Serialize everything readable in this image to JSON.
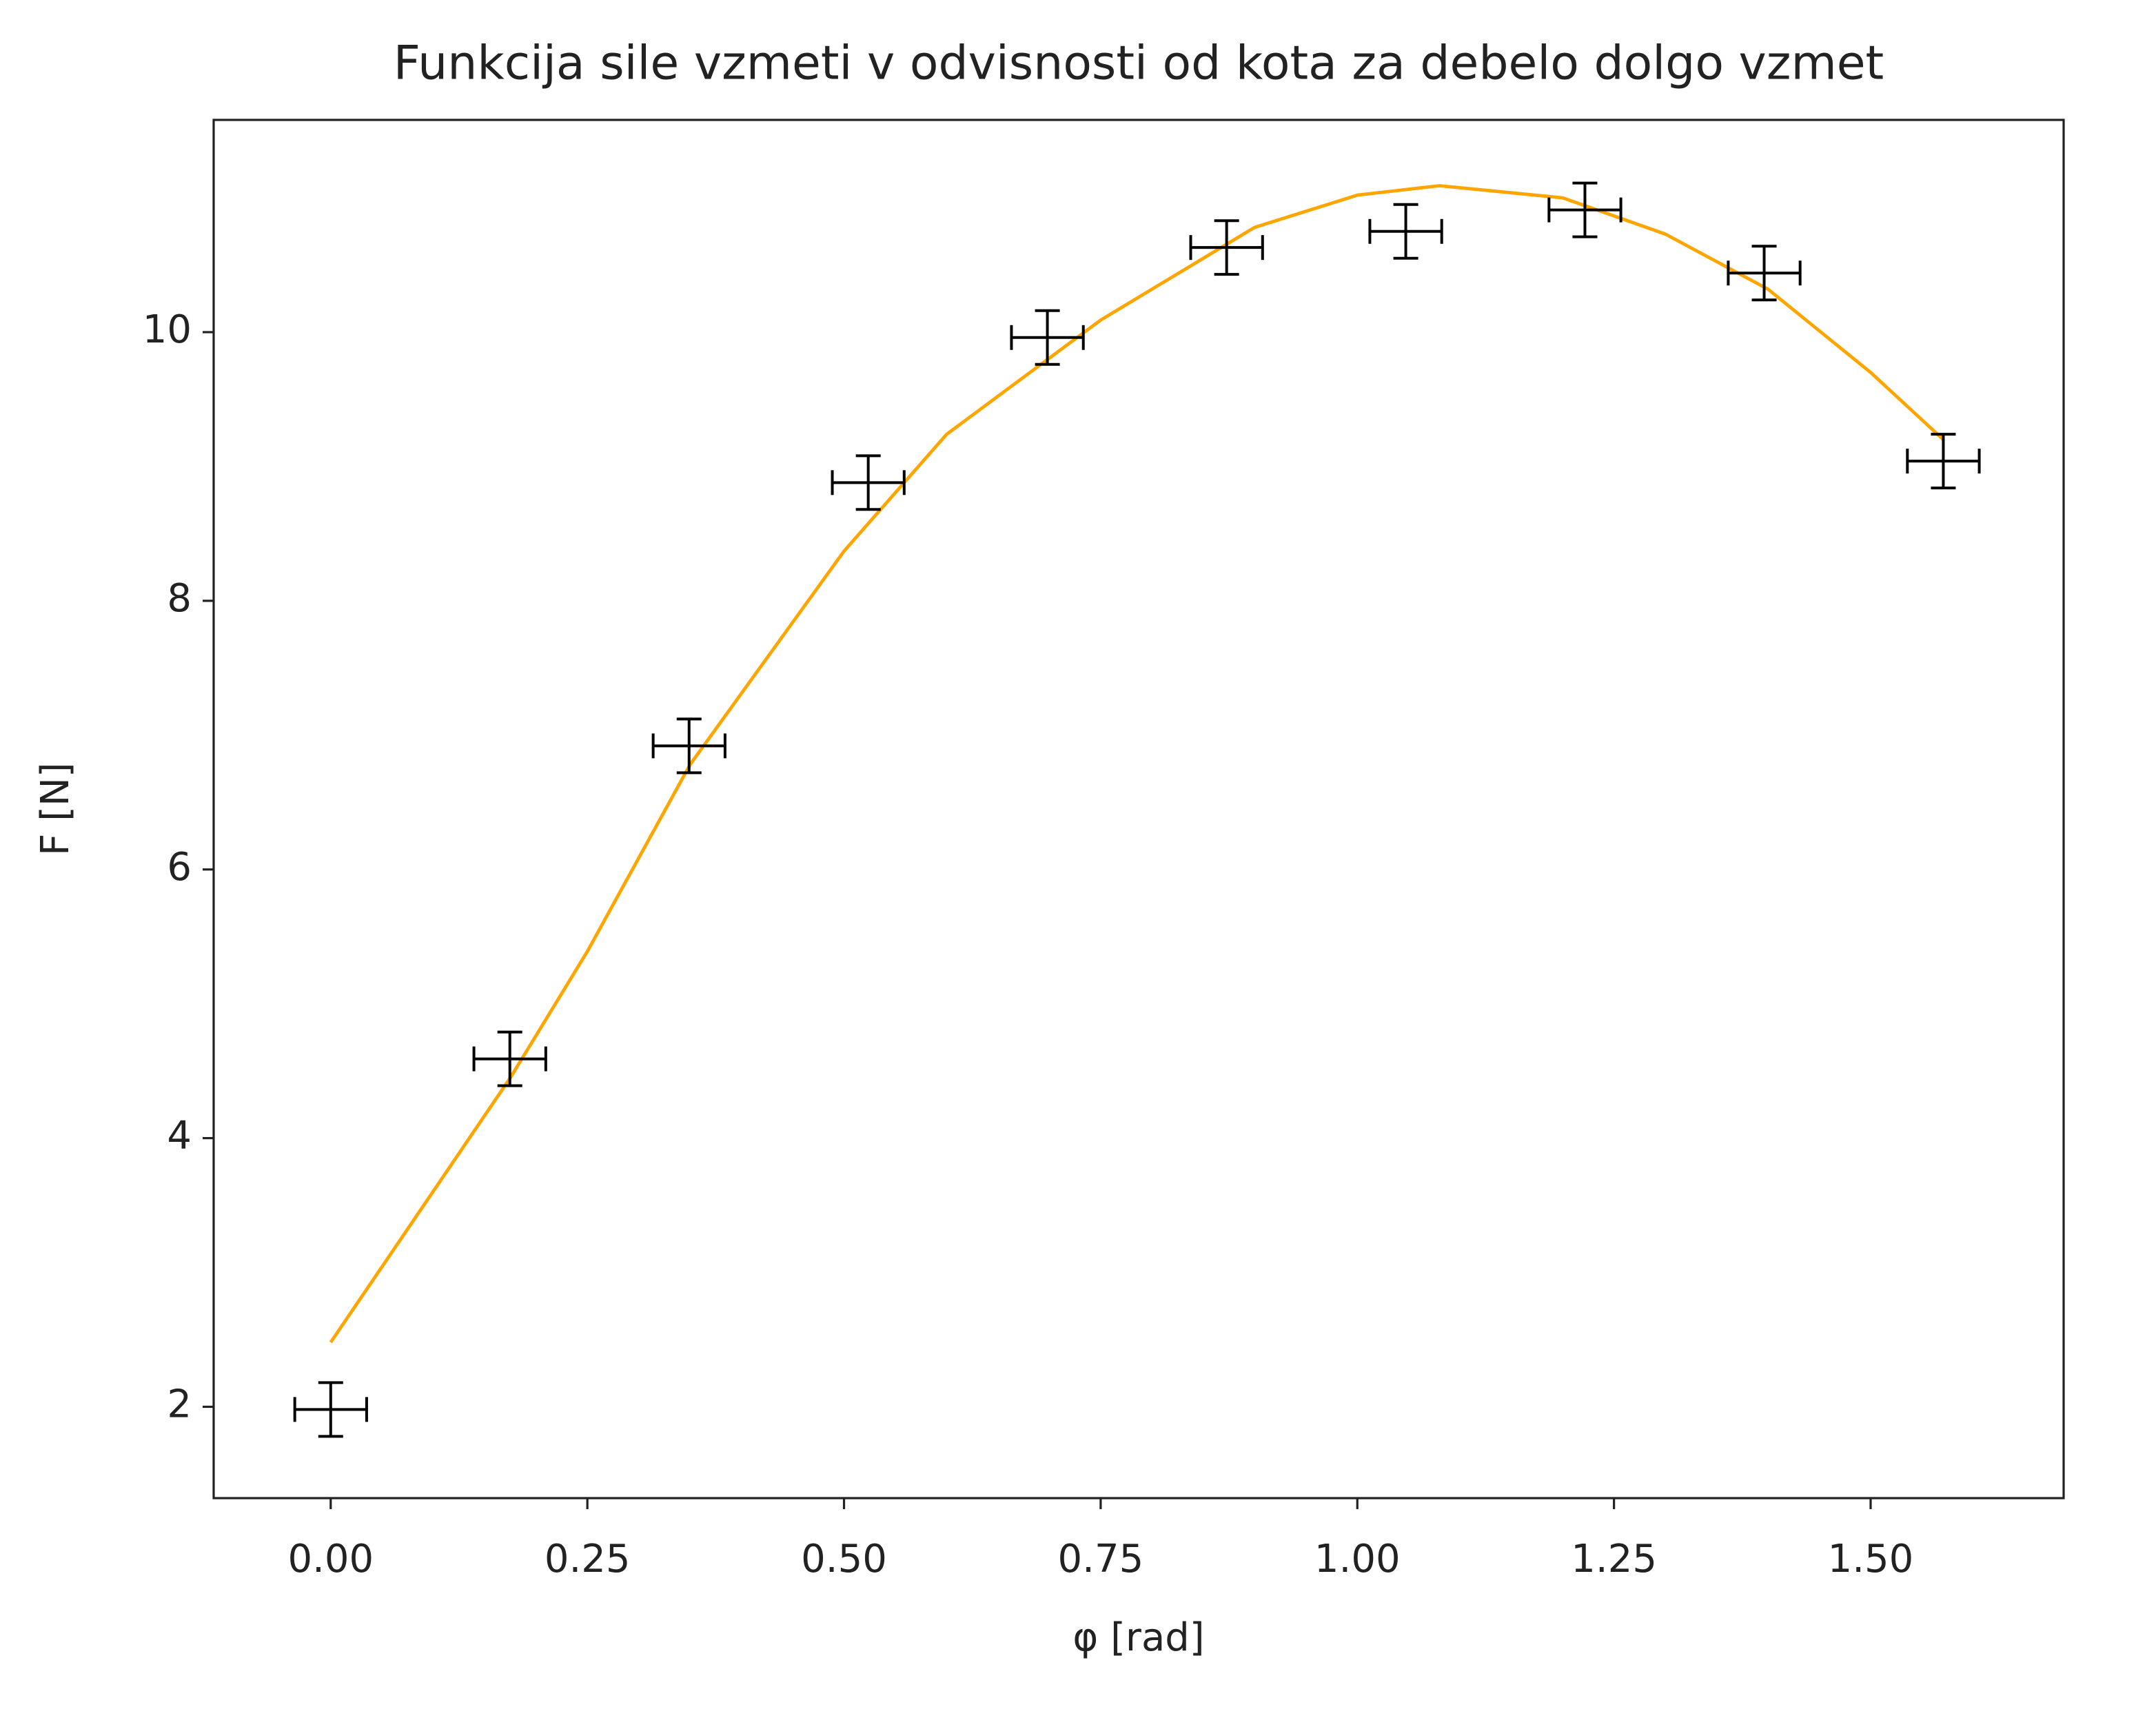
{
  "chart_data": {
    "type": "errorbar",
    "title": "Funkcija sile vzmeti v odvisnosti od kota za debelo dolgo vzmet",
    "xlabel": "φ [rad]",
    "ylabel": "F [N]",
    "x": [
      0,
      0.1745,
      0.3491,
      0.5236,
      0.6981,
      0.8727,
      1.0472,
      1.2217,
      1.3963,
      1.5708
    ],
    "values": [
      1.98,
      4.59,
      6.92,
      8.88,
      9.96,
      10.63,
      10.75,
      10.91,
      10.44,
      9.04
    ],
    "xerr": [
      0.035,
      0.035,
      0.035,
      0.035,
      0.035,
      0.035,
      0.035,
      0.035,
      0.035,
      0.035
    ],
    "yerr": [
      0.2,
      0.2,
      0.2,
      0.2,
      0.2,
      0.2,
      0.2,
      0.2,
      0.2,
      0.2
    ],
    "color": "#000000",
    "fit": {
      "type": "line",
      "color": "#ffa500",
      "x": [
        0,
        0.175,
        0.25,
        0.35,
        0.5,
        0.6,
        0.75,
        0.9,
        1.0,
        1.08,
        1.2,
        1.3,
        1.4,
        1.5,
        1.5708
      ],
      "values": [
        2.48,
        4.45,
        5.39,
        6.78,
        8.37,
        9.24,
        10.09,
        10.78,
        11.02,
        11.09,
        11.0,
        10.73,
        10.32,
        9.7,
        9.2
      ]
    },
    "xlim": [
      -0.114,
      1.688
    ],
    "ylim": [
      1.32,
      11.58
    ],
    "xticks": [
      {
        "value": 0,
        "label": "0.00"
      },
      0.25,
      {
        "value": 0.5,
        "label": "0.50"
      },
      0.75,
      {
        "value": 1,
        "label": "1.00"
      },
      1.25,
      {
        "value": 1.5,
        "label": "1.50"
      }
    ],
    "yticks": [
      2,
      4,
      6,
      8,
      10
    ],
    "grid": false
  }
}
